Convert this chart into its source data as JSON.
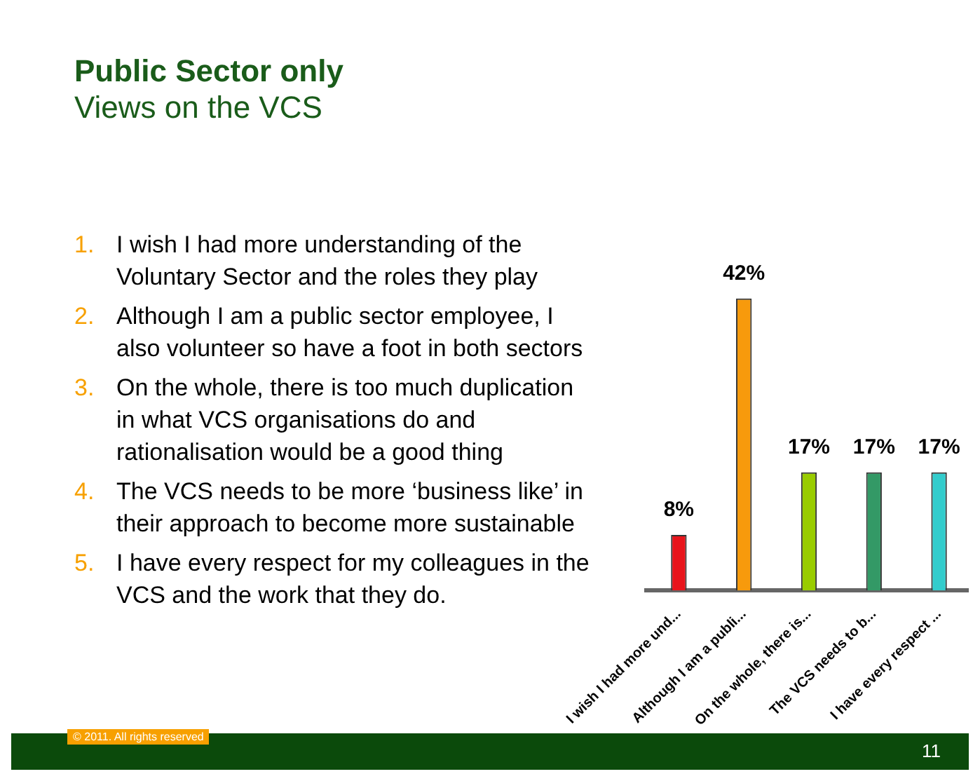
{
  "chart_data": {
    "type": "bar",
    "title": "Public Sector only",
    "subtitle": "Views on the VCS",
    "categories": [
      "I wish I had more und...",
      "Although I am a publi...",
      "On the whole, there is...",
      "The VCS needs to b...",
      "I have every respect ..."
    ],
    "values": [
      8,
      42,
      17,
      17,
      17
    ],
    "value_labels": [
      "8%",
      "42%",
      "17%",
      "17%",
      "17%"
    ],
    "colors": [
      "#e8141b",
      "#f79a0c",
      "#99cc00",
      "#339966",
      "#33cccc"
    ],
    "grid": false,
    "legend": false,
    "annotations": [
      "1. I wish I had more understanding of the Voluntary Sector and the roles they play",
      "2. Although I am a public sector employee, I also volunteer so have a foot in both sectors",
      "3. On the whole, there is too much duplication in what VCS organisations do and rationalisation would be a good thing",
      "4. The VCS needs to be more ‘business like’ in their approach to become more sustainable",
      "5. I have every respect for my colleagues in the VCS and the work that they do.",
      "© 2011. All rights reserved",
      "11"
    ]
  }
}
